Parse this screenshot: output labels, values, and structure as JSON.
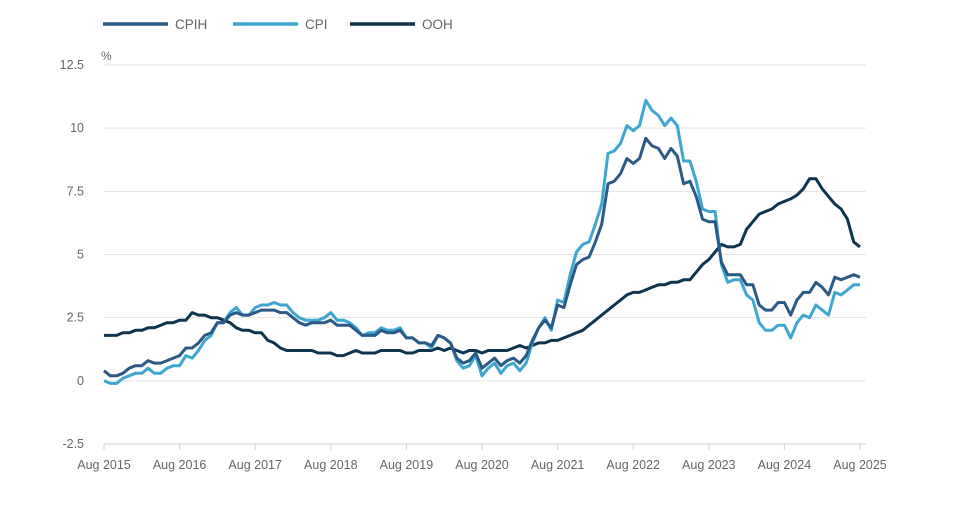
{
  "chart_data": {
    "type": "line",
    "ylabel": "%",
    "ylim": [
      -2.5,
      12.5
    ],
    "yticks": [
      "-2.5",
      "0",
      "2.5",
      "5",
      "7.5",
      "10",
      "12.5"
    ],
    "ytick_values": [
      -2.5,
      0,
      2.5,
      5,
      7.5,
      10,
      12.5
    ],
    "x_start": "Aug 2015",
    "x_end": "Aug 2025",
    "x_frequency": "monthly",
    "xticks": [
      "Aug 2015",
      "Aug 2016",
      "Aug 2017",
      "Aug 2018",
      "Aug 2019",
      "Aug 2020",
      "Aug 2021",
      "Aug 2022",
      "Aug 2023",
      "Aug 2024",
      "Aug 2025"
    ],
    "grid": true,
    "legend_position": "top-left",
    "series": [
      {
        "name": "CPIH",
        "color": "#2c5a87",
        "values": [
          0.4,
          0.2,
          0.2,
          0.3,
          0.5,
          0.6,
          0.6,
          0.8,
          0.7,
          0.7,
          0.8,
          0.9,
          1.0,
          1.3,
          1.3,
          1.5,
          1.8,
          1.9,
          2.3,
          2.3,
          2.6,
          2.7,
          2.6,
          2.6,
          2.7,
          2.8,
          2.8,
          2.8,
          2.7,
          2.7,
          2.5,
          2.3,
          2.2,
          2.3,
          2.3,
          2.3,
          2.4,
          2.2,
          2.2,
          2.2,
          2.0,
          1.8,
          1.8,
          1.8,
          2.0,
          1.9,
          1.9,
          2.0,
          1.7,
          1.7,
          1.5,
          1.5,
          1.4,
          1.8,
          1.7,
          1.5,
          0.9,
          0.7,
          0.8,
          1.1,
          0.5,
          0.7,
          0.9,
          0.6,
          0.8,
          0.9,
          0.7,
          1.0,
          1.6,
          2.1,
          2.4,
          2.1,
          3.0,
          2.9,
          3.8,
          4.6,
          4.8,
          4.9,
          5.5,
          6.2,
          7.8,
          7.9,
          8.2,
          8.8,
          8.6,
          8.8,
          9.6,
          9.3,
          9.2,
          8.8,
          9.2,
          8.9,
          7.8,
          7.9,
          7.3,
          6.4,
          6.3,
          6.3,
          4.7,
          4.2,
          4.2,
          4.2,
          3.8,
          3.8,
          3.0,
          2.8,
          2.8,
          3.1,
          3.1,
          2.6,
          3.2,
          3.5,
          3.5,
          3.9,
          3.7,
          3.4,
          4.1,
          4.0,
          4.1,
          4.2,
          4.1
        ]
      },
      {
        "name": "CPI",
        "color": "#3ea6d0",
        "values": [
          0.0,
          -0.1,
          -0.1,
          0.1,
          0.2,
          0.3,
          0.3,
          0.5,
          0.3,
          0.3,
          0.5,
          0.6,
          0.6,
          1.0,
          0.9,
          1.2,
          1.6,
          1.8,
          2.3,
          2.3,
          2.7,
          2.9,
          2.6,
          2.6,
          2.9,
          3.0,
          3.0,
          3.1,
          3.0,
          3.0,
          2.7,
          2.5,
          2.4,
          2.4,
          2.4,
          2.5,
          2.7,
          2.4,
          2.4,
          2.3,
          2.1,
          1.8,
          1.9,
          1.9,
          2.1,
          2.0,
          2.0,
          2.1,
          1.7,
          1.7,
          1.5,
          1.5,
          1.3,
          1.8,
          1.7,
          1.5,
          0.8,
          0.5,
          0.6,
          1.0,
          0.2,
          0.5,
          0.7,
          0.3,
          0.6,
          0.7,
          0.4,
          0.7,
          1.5,
          2.1,
          2.5,
          2.0,
          3.2,
          3.1,
          4.2,
          5.1,
          5.4,
          5.5,
          6.2,
          7.0,
          9.0,
          9.1,
          9.4,
          10.1,
          9.9,
          10.1,
          11.1,
          10.7,
          10.5,
          10.1,
          10.4,
          10.1,
          8.7,
          8.7,
          7.9,
          6.8,
          6.7,
          6.7,
          4.6,
          3.9,
          4.0,
          4.0,
          3.4,
          3.2,
          2.3,
          2.0,
          2.0,
          2.2,
          2.2,
          1.7,
          2.3,
          2.6,
          2.5,
          3.0,
          2.8,
          2.6,
          3.5,
          3.4,
          3.6,
          3.8,
          3.8
        ]
      },
      {
        "name": "OOH",
        "color": "#0d3550",
        "values": [
          1.8,
          1.8,
          1.8,
          1.9,
          1.9,
          2.0,
          2.0,
          2.1,
          2.1,
          2.2,
          2.3,
          2.3,
          2.4,
          2.4,
          2.7,
          2.6,
          2.6,
          2.5,
          2.5,
          2.4,
          2.3,
          2.1,
          2.0,
          2.0,
          1.9,
          1.9,
          1.6,
          1.5,
          1.3,
          1.2,
          1.2,
          1.2,
          1.2,
          1.2,
          1.1,
          1.1,
          1.1,
          1.0,
          1.0,
          1.1,
          1.2,
          1.1,
          1.1,
          1.1,
          1.2,
          1.2,
          1.2,
          1.2,
          1.1,
          1.1,
          1.2,
          1.2,
          1.2,
          1.3,
          1.2,
          1.3,
          1.2,
          1.1,
          1.2,
          1.2,
          1.1,
          1.2,
          1.2,
          1.2,
          1.2,
          1.3,
          1.4,
          1.3,
          1.4,
          1.5,
          1.5,
          1.6,
          1.6,
          1.7,
          1.8,
          1.9,
          2.0,
          2.2,
          2.4,
          2.6,
          2.8,
          3.0,
          3.2,
          3.4,
          3.5,
          3.5,
          3.6,
          3.7,
          3.8,
          3.8,
          3.9,
          3.9,
          4.0,
          4.0,
          4.3,
          4.6,
          4.8,
          5.1,
          5.4,
          5.3,
          5.3,
          5.4,
          6.0,
          6.3,
          6.6,
          6.7,
          6.8,
          7.0,
          7.1,
          7.2,
          7.35,
          7.6,
          8.0,
          8.0,
          7.6,
          7.3,
          7.0,
          6.8,
          6.4,
          5.5,
          5.3
        ]
      }
    ]
  }
}
